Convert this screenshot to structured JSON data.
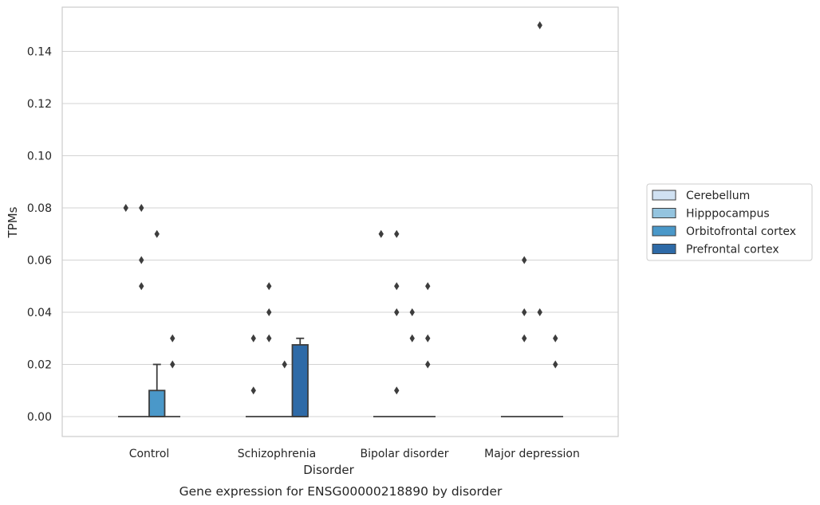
{
  "chart_data": {
    "type": "box",
    "xlabel": "Disorder",
    "ylabel": "TPMs",
    "caption": "Gene expression for ENSG00000218890 by disorder",
    "categories": [
      "Control",
      "Schizophrenia",
      "Bipolar disorder",
      "Major depression"
    ],
    "ylim": [
      -0.0075,
      0.157
    ],
    "yticks": [
      "0.00",
      "0.02",
      "0.04",
      "0.06",
      "0.08",
      "0.10",
      "0.12",
      "0.14"
    ],
    "grid": true,
    "legend_position": "right",
    "series": [
      {
        "name": "Cerebellum",
        "color": "#d0e1f2",
        "boxes": [
          {
            "q1": 0,
            "median": 0,
            "q3": 0,
            "whisker_low": 0,
            "whisker_high": 0,
            "outliers": [
              0.08
            ]
          },
          {
            "q1": 0,
            "median": 0,
            "q3": 0,
            "whisker_low": 0,
            "whisker_high": 0,
            "outliers": [
              0.01,
              0.03
            ]
          },
          {
            "q1": 0,
            "median": 0,
            "q3": 0,
            "whisker_low": 0,
            "whisker_high": 0,
            "outliers": [
              0.07
            ]
          },
          {
            "q1": 0,
            "median": 0,
            "q3": 0,
            "whisker_low": 0,
            "whisker_high": 0,
            "outliers": []
          }
        ]
      },
      {
        "name": "Hipppocampus",
        "color": "#94c4df",
        "boxes": [
          {
            "q1": 0,
            "median": 0,
            "q3": 0,
            "whisker_low": 0,
            "whisker_high": 0,
            "outliers": [
              0.05,
              0.06,
              0.08
            ]
          },
          {
            "q1": 0,
            "median": 0,
            "q3": 0,
            "whisker_low": 0,
            "whisker_high": 0,
            "outliers": [
              0.03,
              0.04,
              0.05
            ]
          },
          {
            "q1": 0,
            "median": 0,
            "q3": 0,
            "whisker_low": 0,
            "whisker_high": 0,
            "outliers": [
              0.01,
              0.04,
              0.05,
              0.07
            ]
          },
          {
            "q1": 0,
            "median": 0,
            "q3": 0,
            "whisker_low": 0,
            "whisker_high": 0,
            "outliers": [
              0.03,
              0.04,
              0.06
            ]
          }
        ]
      },
      {
        "name": "Orbitofrontal cortex",
        "color": "#4a98c9",
        "boxes": [
          {
            "q1": 0,
            "median": 0,
            "q3": 0.01,
            "whisker_low": 0,
            "whisker_high": 0.02,
            "outliers": [
              0.07
            ]
          },
          {
            "q1": 0,
            "median": 0,
            "q3": 0,
            "whisker_low": 0,
            "whisker_high": 0,
            "outliers": [
              0.02
            ]
          },
          {
            "q1": 0,
            "median": 0,
            "q3": 0,
            "whisker_low": 0,
            "whisker_high": 0,
            "outliers": [
              0.03,
              0.04
            ]
          },
          {
            "q1": 0,
            "median": 0,
            "q3": 0,
            "whisker_low": 0,
            "whisker_high": 0,
            "outliers": [
              0.04,
              0.15
            ]
          }
        ]
      },
      {
        "name": "Prefrontal cortex",
        "color": "#2e6aa7",
        "boxes": [
          {
            "q1": 0,
            "median": 0,
            "q3": 0,
            "whisker_low": 0,
            "whisker_high": 0,
            "outliers": [
              0.02,
              0.03
            ]
          },
          {
            "q1": 0,
            "median": 0,
            "q3": 0.0275,
            "whisker_low": 0,
            "whisker_high": 0.03,
            "outliers": []
          },
          {
            "q1": 0,
            "median": 0,
            "q3": 0,
            "whisker_low": 0,
            "whisker_high": 0,
            "outliers": [
              0.02,
              0.03,
              0.05
            ]
          },
          {
            "q1": 0,
            "median": 0,
            "q3": 0,
            "whisker_low": 0,
            "whisker_high": 0,
            "outliers": [
              0.02,
              0.03
            ]
          }
        ]
      }
    ]
  }
}
